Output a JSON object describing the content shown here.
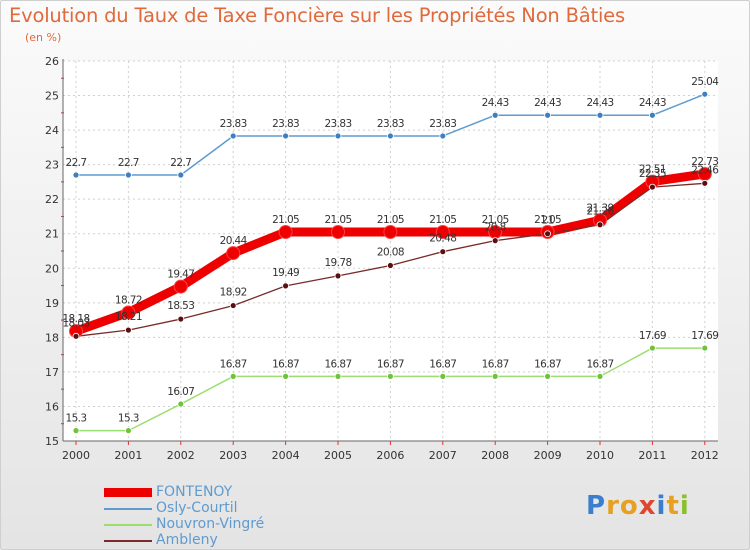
{
  "title": "Evolution du Taux de Taxe Foncière sur les Propriétés Non Bâties",
  "unit": "(en %)",
  "logo": {
    "letters": [
      "P",
      "r",
      "o",
      "x",
      "i",
      "t",
      "i"
    ],
    "colors": [
      "#3a7fcf",
      "#e7a021",
      "#e7a021",
      "#e0462f",
      "#3a7fcf",
      "#e7a021",
      "#8bbf2f"
    ]
  },
  "chart_data": {
    "type": "line",
    "title": "Evolution du Taux de Taxe Foncière sur les Propriétés Non Bâties",
    "ylabel": "(en %)",
    "ylim": [
      15,
      26
    ],
    "yticks": [
      15,
      16,
      17,
      18,
      19,
      20,
      21,
      22,
      23,
      24,
      25,
      26
    ],
    "categories": [
      "2000",
      "2001",
      "2002",
      "2003",
      "2004",
      "2005",
      "2006",
      "2007",
      "2008",
      "2009",
      "2010",
      "2011",
      "2012"
    ],
    "series": [
      {
        "name": "FONTENOY",
        "color": "#ee0000",
        "values": [
          18.18,
          18.72,
          19.47,
          20.44,
          21.05,
          21.05,
          21.05,
          21.05,
          21.05,
          21.05,
          21.39,
          22.51,
          22.73
        ],
        "labels": [
          "18.18",
          "18.72",
          "19.47",
          "20.44",
          "21.05",
          "21.05",
          "21.05",
          "21.05",
          "21.05",
          "21.05",
          "21.39",
          "22.51",
          "22.73"
        ]
      },
      {
        "name": "Osly-Courtil",
        "color": "#5f9bcf",
        "values": [
          22.7,
          22.7,
          22.7,
          23.83,
          23.83,
          23.83,
          23.83,
          23.83,
          24.43,
          24.43,
          24.43,
          24.43,
          25.04
        ],
        "labels": [
          "22.7",
          "22.7",
          "22.7",
          "23.83",
          "23.83",
          "23.83",
          "23.83",
          "23.83",
          "24.43",
          "24.43",
          "24.43",
          "24.43",
          "25.04"
        ]
      },
      {
        "name": "Nouvron-Vingré",
        "color": "#9bde6f",
        "values": [
          15.3,
          15.3,
          16.07,
          16.87,
          16.87,
          16.87,
          16.87,
          16.87,
          16.87,
          16.87,
          16.87,
          17.69,
          17.69
        ],
        "labels": [
          "15.3",
          "15.3",
          "16.07",
          "16.87",
          "16.87",
          "16.87",
          "16.87",
          "16.87",
          "16.87",
          "16.87",
          "16.87",
          "17.69",
          "17.69"
        ]
      },
      {
        "name": "Ambleny",
        "color": "#7a2a2a",
        "values": [
          18.03,
          18.21,
          18.53,
          18.92,
          19.49,
          19.78,
          20.08,
          20.48,
          20.8,
          21.0,
          21.26,
          22.35,
          22.46
        ],
        "labels": [
          "18.03",
          "18.21",
          "18.53",
          "18.92",
          "19.49",
          "19.78",
          "20.08",
          "20.48",
          "20.8",
          "21",
          "21.26",
          "22.35",
          "22.46"
        ]
      }
    ]
  }
}
